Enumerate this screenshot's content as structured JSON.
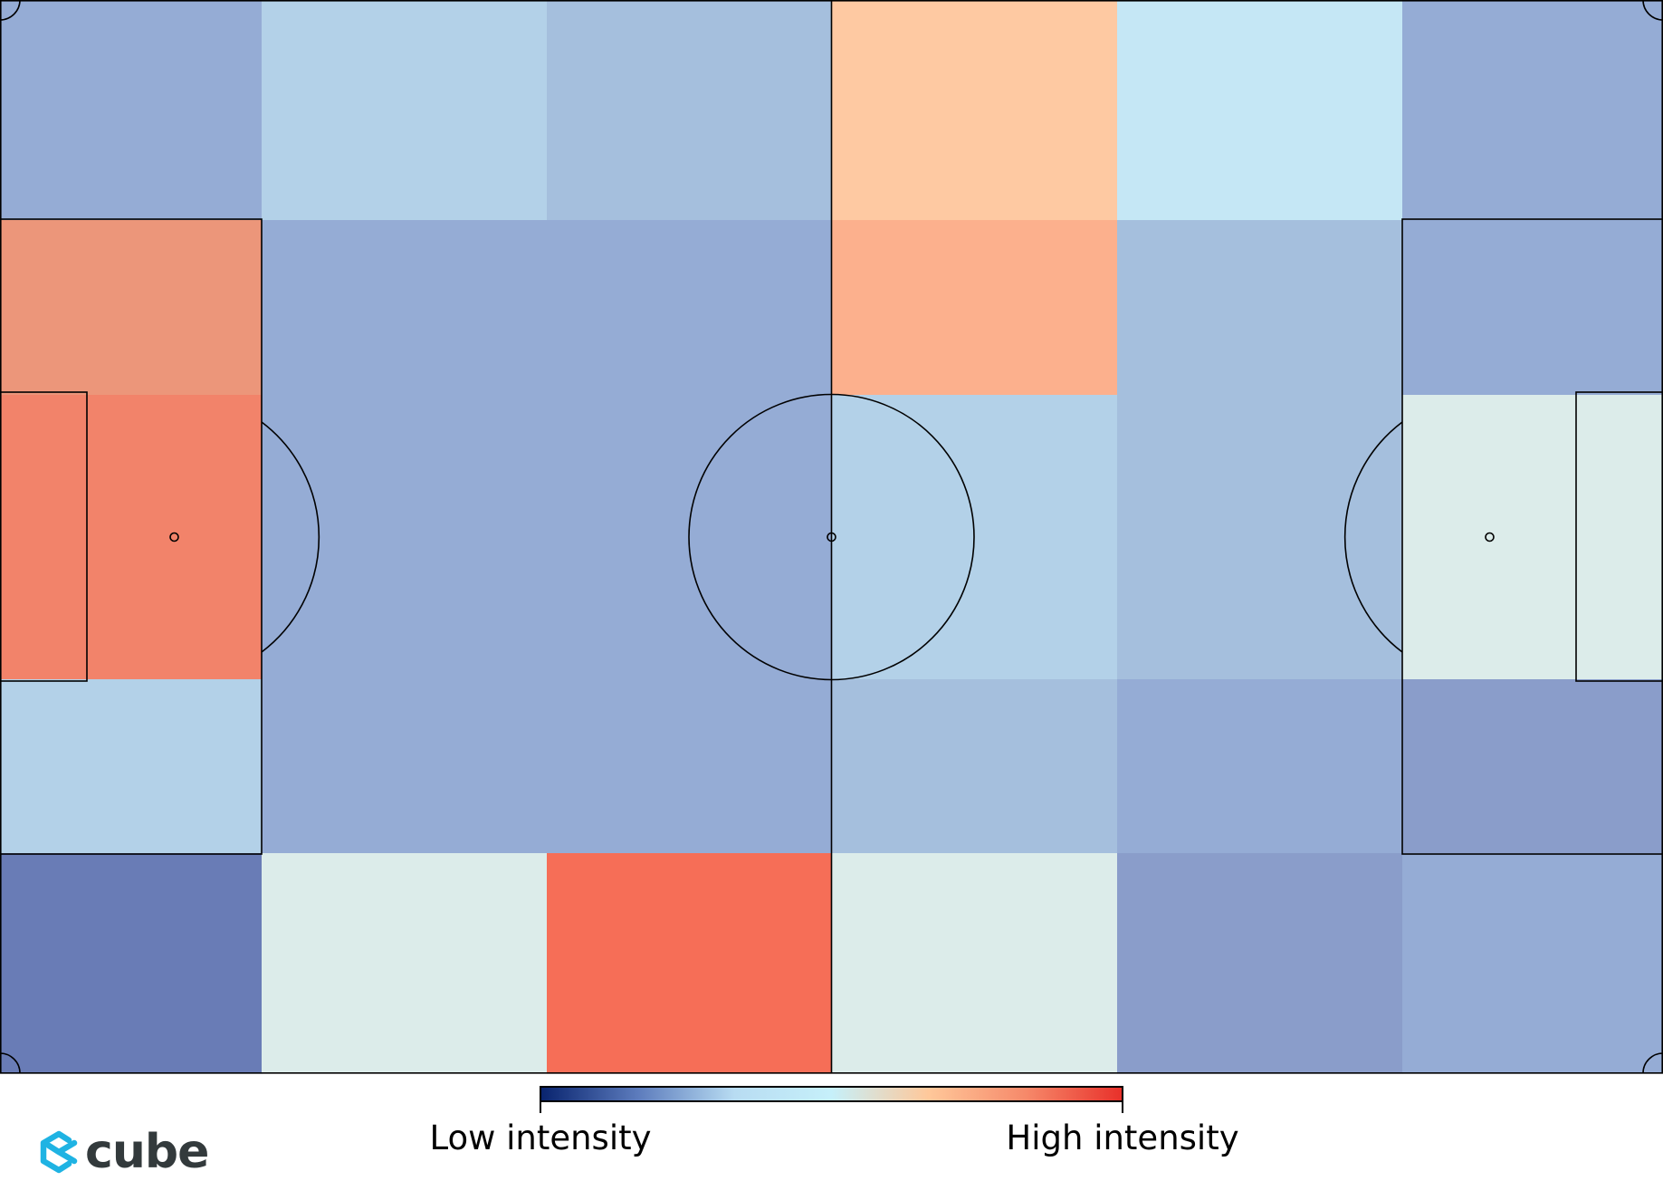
{
  "chart_data": {
    "type": "heatmap",
    "title": "",
    "columns": 6,
    "rows": 5,
    "colorscale": [
      "#08236e",
      "#5c7bbc",
      "#b8dcf2",
      "#c6f0fa",
      "#ffc89a",
      "#f6896a",
      "#e8302a"
    ],
    "values": [
      [
        0.42,
        0.56,
        0.47,
        0.72,
        0.61,
        0.42
      ],
      [
        0.78,
        0.42,
        0.42,
        0.75,
        0.47,
        0.42
      ],
      [
        0.88,
        0.42,
        0.42,
        0.56,
        0.47,
        0.63
      ],
      [
        0.56,
        0.42,
        0.42,
        0.47,
        0.42,
        0.38
      ],
      [
        0.3,
        0.63,
        0.92,
        0.63,
        0.38,
        0.42
      ]
    ],
    "cell_colors": [
      [
        "#95acd5",
        "#b3d1e8",
        "#a5bfdd",
        "#fec9a2",
        "#c5e7f5",
        "#95acd5"
      ],
      [
        "#ec967a",
        "#95acd5",
        "#95acd5",
        "#fcb08d",
        "#a5bfdd",
        "#95acd5"
      ],
      [
        "#f2836a",
        "#95acd5",
        "#95acd5",
        "#b3d1e8",
        "#a5bfdd",
        "#dcecea"
      ],
      [
        "#b3d1e8",
        "#95acd5",
        "#95acd5",
        "#a5bfdd",
        "#95acd5",
        "#8a9dca"
      ],
      [
        "#697cb6",
        "#dcecea",
        "#f66e57",
        "#dcecea",
        "#8a9dca",
        "#95acd5"
      ]
    ],
    "legend": {
      "low_label": "Low intensity",
      "high_label": "High intensity"
    }
  },
  "logo": {
    "text": "cube",
    "icon": "cube-logo-icon",
    "color": "#1fb3e3"
  }
}
